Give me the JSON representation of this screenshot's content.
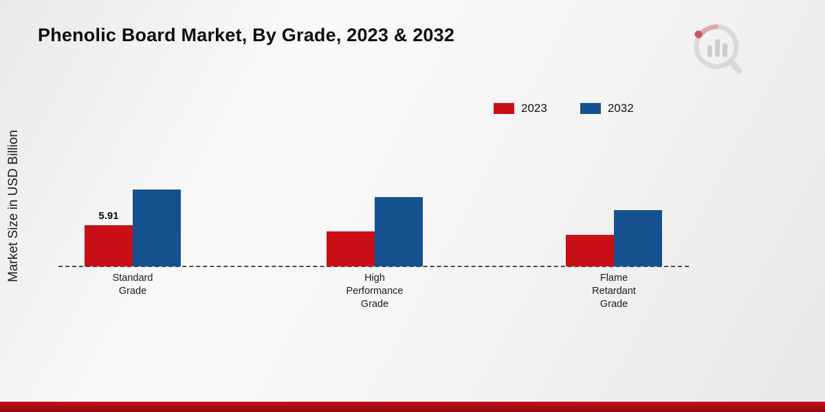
{
  "page": {
    "title": "Phenolic Board Market, By Grade, 2023 & 2032",
    "ylabel": "Market Size in USD Billion"
  },
  "chart_data": {
    "type": "bar",
    "title": "Phenolic Board Market, By Grade, 2023 & 2032",
    "xlabel": "",
    "ylabel": "Market Size in USD Billion",
    "categories": [
      "Standard\nGrade",
      "High\nPerformance\nGrade",
      "Flame\nRetardant\nGrade"
    ],
    "series": [
      {
        "name": "2023",
        "color": "#c81016",
        "values": [
          5.91,
          5.0,
          4.55
        ]
      },
      {
        "name": "2032",
        "color": "#15518e",
        "values": [
          11.05,
          9.95,
          8.1
        ]
      }
    ],
    "data_labels": [
      {
        "series_index": 0,
        "category_index": 0,
        "text": "5.91"
      }
    ],
    "ylim": [
      0,
      12
    ],
    "grid": false,
    "legend_position": "top-right",
    "baseline_style": "dashed"
  }
}
